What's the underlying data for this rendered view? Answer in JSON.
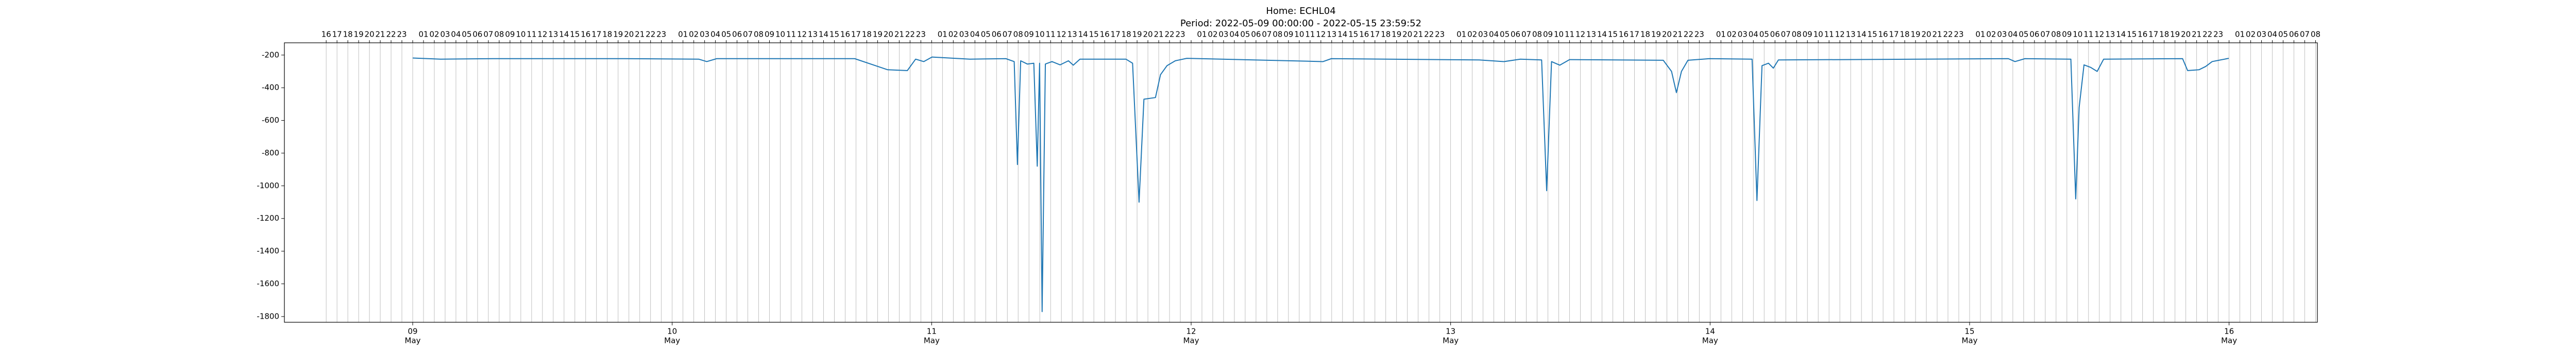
{
  "chart_data": {
    "type": "line",
    "title": "Home: ECHL04",
    "subtitle": "Period: 2022-05-09 00:00:00 - 2022-05-15 23:59:52",
    "color": "#1f77b4",
    "grid": true,
    "xlim": [
      "2022-05-08 12:08",
      "2022-05-16 08:10"
    ],
    "ylim": [
      -1835,
      -125
    ],
    "yticks": [
      -200,
      -400,
      -600,
      -800,
      -1000,
      -1200,
      -1400,
      -1600,
      -1800
    ],
    "xticks": [
      {
        "value": "2022-05-09 00:00",
        "label": [
          "09",
          "May"
        ]
      },
      {
        "value": "2022-05-10 00:00",
        "label": [
          "10",
          "May"
        ]
      },
      {
        "value": "2022-05-11 00:00",
        "label": [
          "11",
          "May"
        ]
      },
      {
        "value": "2022-05-12 00:00",
        "label": [
          "12",
          "May"
        ]
      },
      {
        "value": "2022-05-13 00:00",
        "label": [
          "13",
          "May"
        ]
      },
      {
        "value": "2022-05-14 00:00",
        "label": [
          "14",
          "May"
        ]
      },
      {
        "value": "2022-05-15 00:00",
        "label": [
          "15",
          "May"
        ]
      },
      {
        "value": "2022-05-16 00:00",
        "label": [
          "16",
          "May"
        ]
      }
    ],
    "x2ticks": [
      {
        "value": "2022-05-08 16:00",
        "label": "16"
      },
      {
        "value": "2022-05-08 17:00",
        "label": "17"
      },
      {
        "value": "2022-05-08 18:00",
        "label": "18"
      },
      {
        "value": "2022-05-08 19:00",
        "label": "19"
      },
      {
        "value": "2022-05-08 20:00",
        "label": "20"
      },
      {
        "value": "2022-05-08 21:00",
        "label": "21"
      },
      {
        "value": "2022-05-08 22:00",
        "label": "22"
      },
      {
        "value": "2022-05-08 23:00",
        "label": "23"
      },
      {
        "value": "2022-05-09 00:00",
        "label": null
      },
      {
        "value": "2022-05-09 01:00",
        "label": "01"
      },
      {
        "value": "2022-05-09 02:00",
        "label": "02"
      },
      {
        "value": "2022-05-09 03:00",
        "label": "03"
      },
      {
        "value": "2022-05-09 04:00",
        "label": "04"
      },
      {
        "value": "2022-05-09 05:00",
        "label": "05"
      },
      {
        "value": "2022-05-09 06:00",
        "label": "06"
      },
      {
        "value": "2022-05-09 07:00",
        "label": "07"
      },
      {
        "value": "2022-05-09 08:00",
        "label": "08"
      },
      {
        "value": "2022-05-09 09:00",
        "label": "09"
      },
      {
        "value": "2022-05-09 10:00",
        "label": "10"
      },
      {
        "value": "2022-05-09 11:00",
        "label": "11"
      },
      {
        "value": "2022-05-09 12:00",
        "label": "12"
      },
      {
        "value": "2022-05-09 13:00",
        "label": "13"
      },
      {
        "value": "2022-05-09 14:00",
        "label": "14"
      },
      {
        "value": "2022-05-09 15:00",
        "label": "15"
      },
      {
        "value": "2022-05-09 16:00",
        "label": "16"
      },
      {
        "value": "2022-05-09 17:00",
        "label": "17"
      },
      {
        "value": "2022-05-09 18:00",
        "label": "18"
      },
      {
        "value": "2022-05-09 19:00",
        "label": "19"
      },
      {
        "value": "2022-05-09 20:00",
        "label": "20"
      },
      {
        "value": "2022-05-09 21:00",
        "label": "21"
      },
      {
        "value": "2022-05-09 22:00",
        "label": "22"
      },
      {
        "value": "2022-05-09 23:00",
        "label": "23"
      },
      {
        "value": "2022-05-10 00:00",
        "label": null
      },
      {
        "value": "2022-05-10 01:00",
        "label": "01"
      },
      {
        "value": "2022-05-10 02:00",
        "label": "02"
      },
      {
        "value": "2022-05-10 03:00",
        "label": "03"
      },
      {
        "value": "2022-05-10 04:00",
        "label": "04"
      },
      {
        "value": "2022-05-10 05:00",
        "label": "05"
      },
      {
        "value": "2022-05-10 06:00",
        "label": "06"
      },
      {
        "value": "2022-05-10 07:00",
        "label": "07"
      },
      {
        "value": "2022-05-10 08:00",
        "label": "08"
      },
      {
        "value": "2022-05-10 09:00",
        "label": "09"
      },
      {
        "value": "2022-05-10 10:00",
        "label": "10"
      },
      {
        "value": "2022-05-10 11:00",
        "label": "11"
      },
      {
        "value": "2022-05-10 12:00",
        "label": "12"
      },
      {
        "value": "2022-05-10 13:00",
        "label": "13"
      },
      {
        "value": "2022-05-10 14:00",
        "label": "14"
      },
      {
        "value": "2022-05-10 15:00",
        "label": "15"
      },
      {
        "value": "2022-05-10 16:00",
        "label": "16"
      },
      {
        "value": "2022-05-10 17:00",
        "label": "17"
      },
      {
        "value": "2022-05-10 18:00",
        "label": "18"
      },
      {
        "value": "2022-05-10 19:00",
        "label": "19"
      },
      {
        "value": "2022-05-10 20:00",
        "label": "20"
      },
      {
        "value": "2022-05-10 21:00",
        "label": "21"
      },
      {
        "value": "2022-05-10 22:00",
        "label": "22"
      },
      {
        "value": "2022-05-10 23:00",
        "label": "23"
      },
      {
        "value": "2022-05-11 00:00",
        "label": null
      },
      {
        "value": "2022-05-11 01:00",
        "label": "01"
      },
      {
        "value": "2022-05-11 02:00",
        "label": "02"
      },
      {
        "value": "2022-05-11 03:00",
        "label": "03"
      },
      {
        "value": "2022-05-11 04:00",
        "label": "04"
      },
      {
        "value": "2022-05-11 05:00",
        "label": "05"
      },
      {
        "value": "2022-05-11 06:00",
        "label": "06"
      },
      {
        "value": "2022-05-11 07:00",
        "label": "07"
      },
      {
        "value": "2022-05-11 08:00",
        "label": "08"
      },
      {
        "value": "2022-05-11 09:00",
        "label": "09"
      },
      {
        "value": "2022-05-11 10:00",
        "label": "10"
      },
      {
        "value": "2022-05-11 11:00",
        "label": "11"
      },
      {
        "value": "2022-05-11 12:00",
        "label": "12"
      },
      {
        "value": "2022-05-11 13:00",
        "label": "13"
      },
      {
        "value": "2022-05-11 14:00",
        "label": "14"
      },
      {
        "value": "2022-05-11 15:00",
        "label": "15"
      },
      {
        "value": "2022-05-11 16:00",
        "label": "16"
      },
      {
        "value": "2022-05-11 17:00",
        "label": "17"
      },
      {
        "value": "2022-05-11 18:00",
        "label": "18"
      },
      {
        "value": "2022-05-11 19:00",
        "label": "19"
      },
      {
        "value": "2022-05-11 20:00",
        "label": "20"
      },
      {
        "value": "2022-05-11 21:00",
        "label": "21"
      },
      {
        "value": "2022-05-11 22:00",
        "label": "22"
      },
      {
        "value": "2022-05-11 23:00",
        "label": "23"
      },
      {
        "value": "2022-05-12 00:00",
        "label": null
      },
      {
        "value": "2022-05-12 01:00",
        "label": "01"
      },
      {
        "value": "2022-05-12 02:00",
        "label": "02"
      },
      {
        "value": "2022-05-12 03:00",
        "label": "03"
      },
      {
        "value": "2022-05-12 04:00",
        "label": "04"
      },
      {
        "value": "2022-05-12 05:00",
        "label": "05"
      },
      {
        "value": "2022-05-12 06:00",
        "label": "06"
      },
      {
        "value": "2022-05-12 07:00",
        "label": "07"
      },
      {
        "value": "2022-05-12 08:00",
        "label": "08"
      },
      {
        "value": "2022-05-12 09:00",
        "label": "09"
      },
      {
        "value": "2022-05-12 10:00",
        "label": "10"
      },
      {
        "value": "2022-05-12 11:00",
        "label": "11"
      },
      {
        "value": "2022-05-12 12:00",
        "label": "12"
      },
      {
        "value": "2022-05-12 13:00",
        "label": "13"
      },
      {
        "value": "2022-05-12 14:00",
        "label": "14"
      },
      {
        "value": "2022-05-12 15:00",
        "label": "15"
      },
      {
        "value": "2022-05-12 16:00",
        "label": "16"
      },
      {
        "value": "2022-05-12 17:00",
        "label": "17"
      },
      {
        "value": "2022-05-12 18:00",
        "label": "18"
      },
      {
        "value": "2022-05-12 19:00",
        "label": "19"
      },
      {
        "value": "2022-05-12 20:00",
        "label": "20"
      },
      {
        "value": "2022-05-12 21:00",
        "label": "21"
      },
      {
        "value": "2022-05-12 22:00",
        "label": "22"
      },
      {
        "value": "2022-05-12 23:00",
        "label": "23"
      },
      {
        "value": "2022-05-13 00:00",
        "label": null
      },
      {
        "value": "2022-05-13 01:00",
        "label": "01"
      },
      {
        "value": "2022-05-13 02:00",
        "label": "02"
      },
      {
        "value": "2022-05-13 03:00",
        "label": "03"
      },
      {
        "value": "2022-05-13 04:00",
        "label": "04"
      },
      {
        "value": "2022-05-13 05:00",
        "label": "05"
      },
      {
        "value": "2022-05-13 06:00",
        "label": "06"
      },
      {
        "value": "2022-05-13 07:00",
        "label": "07"
      },
      {
        "value": "2022-05-13 08:00",
        "label": "08"
      },
      {
        "value": "2022-05-13 09:00",
        "label": "09"
      },
      {
        "value": "2022-05-13 10:00",
        "label": "10"
      },
      {
        "value": "2022-05-13 11:00",
        "label": "11"
      },
      {
        "value": "2022-05-13 12:00",
        "label": "12"
      },
      {
        "value": "2022-05-13 13:00",
        "label": "13"
      },
      {
        "value": "2022-05-13 14:00",
        "label": "14"
      },
      {
        "value": "2022-05-13 15:00",
        "label": "15"
      },
      {
        "value": "2022-05-13 16:00",
        "label": "16"
      },
      {
        "value": "2022-05-13 17:00",
        "label": "17"
      },
      {
        "value": "2022-05-13 18:00",
        "label": "18"
      },
      {
        "value": "2022-05-13 19:00",
        "label": "19"
      },
      {
        "value": "2022-05-13 20:00",
        "label": "20"
      },
      {
        "value": "2022-05-13 21:00",
        "label": "21"
      },
      {
        "value": "2022-05-13 22:00",
        "label": "22"
      },
      {
        "value": "2022-05-13 23:00",
        "label": "23"
      },
      {
        "value": "2022-05-14 00:00",
        "label": null
      },
      {
        "value": "2022-05-14 01:00",
        "label": "01"
      },
      {
        "value": "2022-05-14 02:00",
        "label": "02"
      },
      {
        "value": "2022-05-14 03:00",
        "label": "03"
      },
      {
        "value": "2022-05-14 04:00",
        "label": "04"
      },
      {
        "value": "2022-05-14 05:00",
        "label": "05"
      },
      {
        "value": "2022-05-14 06:00",
        "label": "06"
      },
      {
        "value": "2022-05-14 07:00",
        "label": "07"
      },
      {
        "value": "2022-05-14 08:00",
        "label": "08"
      },
      {
        "value": "2022-05-14 09:00",
        "label": "09"
      },
      {
        "value": "2022-05-14 10:00",
        "label": "10"
      },
      {
        "value": "2022-05-14 11:00",
        "label": "11"
      },
      {
        "value": "2022-05-14 12:00",
        "label": "12"
      },
      {
        "value": "2022-05-14 13:00",
        "label": "13"
      },
      {
        "value": "2022-05-14 14:00",
        "label": "14"
      },
      {
        "value": "2022-05-14 15:00",
        "label": "15"
      },
      {
        "value": "2022-05-14 16:00",
        "label": "16"
      },
      {
        "value": "2022-05-14 17:00",
        "label": "17"
      },
      {
        "value": "2022-05-14 18:00",
        "label": "18"
      },
      {
        "value": "2022-05-14 19:00",
        "label": "19"
      },
      {
        "value": "2022-05-14 20:00",
        "label": "20"
      },
      {
        "value": "2022-05-14 21:00",
        "label": "21"
      },
      {
        "value": "2022-05-14 22:00",
        "label": "22"
      },
      {
        "value": "2022-05-14 23:00",
        "label": "23"
      },
      {
        "value": "2022-05-15 00:00",
        "label": null
      },
      {
        "value": "2022-05-15 01:00",
        "label": "01"
      },
      {
        "value": "2022-05-15 02:00",
        "label": "02"
      },
      {
        "value": "2022-05-15 03:00",
        "label": "03"
      },
      {
        "value": "2022-05-15 04:00",
        "label": "04"
      },
      {
        "value": "2022-05-15 05:00",
        "label": "05"
      },
      {
        "value": "2022-05-15 06:00",
        "label": "06"
      },
      {
        "value": "2022-05-15 07:00",
        "label": "07"
      },
      {
        "value": "2022-05-15 08:00",
        "label": "08"
      },
      {
        "value": "2022-05-15 09:00",
        "label": "09"
      },
      {
        "value": "2022-05-15 10:00",
        "label": "10"
      },
      {
        "value": "2022-05-15 11:00",
        "label": "11"
      },
      {
        "value": "2022-05-15 12:00",
        "label": "12"
      },
      {
        "value": "2022-05-15 13:00",
        "label": "13"
      },
      {
        "value": "2022-05-15 14:00",
        "label": "14"
      },
      {
        "value": "2022-05-15 15:00",
        "label": "15"
      },
      {
        "value": "2022-05-15 16:00",
        "label": "16"
      },
      {
        "value": "2022-05-15 17:00",
        "label": "17"
      },
      {
        "value": "2022-05-15 18:00",
        "label": "18"
      },
      {
        "value": "2022-05-15 19:00",
        "label": "19"
      },
      {
        "value": "2022-05-15 20:00",
        "label": "20"
      },
      {
        "value": "2022-05-15 21:00",
        "label": "21"
      },
      {
        "value": "2022-05-15 22:00",
        "label": "22"
      },
      {
        "value": "2022-05-15 23:00",
        "label": "23"
      },
      {
        "value": "2022-05-16 00:00",
        "label": null
      },
      {
        "value": "2022-05-16 01:00",
        "label": "01"
      },
      {
        "value": "2022-05-16 02:00",
        "label": "02"
      },
      {
        "value": "2022-05-16 03:00",
        "label": "03"
      },
      {
        "value": "2022-05-16 04:00",
        "label": "04"
      },
      {
        "value": "2022-05-16 05:00",
        "label": "05"
      },
      {
        "value": "2022-05-16 06:00",
        "label": "06"
      },
      {
        "value": "2022-05-16 07:00",
        "label": "07"
      },
      {
        "value": "2022-05-16 08:00",
        "label": "08"
      }
    ],
    "x": [
      "2022-05-09 00:00",
      "2022-05-09 02:35",
      "2022-05-09 07:27",
      "2022-05-09 19:36",
      "2022-05-10 02:27",
      "2022-05-10 03:12",
      "2022-05-10 04:07",
      "2022-05-10 16:53",
      "2022-05-10 19:56",
      "2022-05-10 21:45",
      "2022-05-10 22:31",
      "2022-05-10 23:16",
      "2022-05-11 00:02",
      "2022-05-11 03:32",
      "2022-05-11 06:52",
      "2022-05-11 07:38",
      "2022-05-11 07:56",
      "2022-05-11 08:14",
      "2022-05-11 08:51",
      "2022-05-11 09:27",
      "2022-05-11 09:46",
      "2022-05-11 09:59",
      "2022-05-11 10:13",
      "2022-05-11 10:31",
      "2022-05-11 11:08",
      "2022-05-11 11:53",
      "2022-05-11 12:39",
      "2022-05-11 13:06",
      "2022-05-11 13:43",
      "2022-05-11 17:58",
      "2022-05-11 18:35",
      "2022-05-11 19:11",
      "2022-05-11 19:38",
      "2022-05-11 20:42",
      "2022-05-11 21:10",
      "2022-05-11 21:46",
      "2022-05-11 22:32",
      "2022-05-11 23:36",
      "2022-05-12 12:12",
      "2022-05-12 12:58",
      "2022-05-13 02:39",
      "2022-05-13 04:56",
      "2022-05-13 06:27",
      "2022-05-13 08:25",
      "2022-05-13 08:53",
      "2022-05-13 09:20",
      "2022-05-13 10:06",
      "2022-05-13 11:00",
      "2022-05-13 19:40",
      "2022-05-13 20:26",
      "2022-05-13 20:53",
      "2022-05-13 21:21",
      "2022-05-13 21:57",
      "2022-05-13 23:56",
      "2022-05-14 03:53",
      "2022-05-14 04:20",
      "2022-05-14 04:48",
      "2022-05-14 05:24",
      "2022-05-14 05:51",
      "2022-05-14 06:19",
      "2022-05-15 03:35",
      "2022-05-15 04:12",
      "2022-05-15 05:07",
      "2022-05-15 09:22",
      "2022-05-15 09:49",
      "2022-05-15 10:08",
      "2022-05-15 10:35",
      "2022-05-15 11:11",
      "2022-05-15 11:48",
      "2022-05-15 12:24",
      "2022-05-15 19:42",
      "2022-05-15 20:10",
      "2022-05-15 21:13",
      "2022-05-15 21:50",
      "2022-05-15 22:26",
      "2022-05-15 23:03",
      "2022-05-15 23:58"
    ],
    "values": [
      -218,
      -225,
      -222,
      -222,
      -225,
      -240,
      -222,
      -222,
      -290,
      -295,
      -225,
      -240,
      -212,
      -225,
      -222,
      -240,
      -870,
      -235,
      -255,
      -250,
      -880,
      -250,
      -1770,
      -255,
      -240,
      -260,
      -235,
      -262,
      -225,
      -225,
      -250,
      -1100,
      -470,
      -460,
      -320,
      -265,
      -235,
      -220,
      -240,
      -222,
      -230,
      -240,
      -225,
      -230,
      -1030,
      -240,
      -262,
      -228,
      -232,
      -300,
      -430,
      -300,
      -232,
      -222,
      -225,
      -1090,
      -265,
      -250,
      -280,
      -230,
      -222,
      -240,
      -222,
      -225,
      -1080,
      -520,
      -260,
      -275,
      -300,
      -225,
      -222,
      -295,
      -290,
      -270,
      -240,
      -232,
      -220
    ]
  }
}
